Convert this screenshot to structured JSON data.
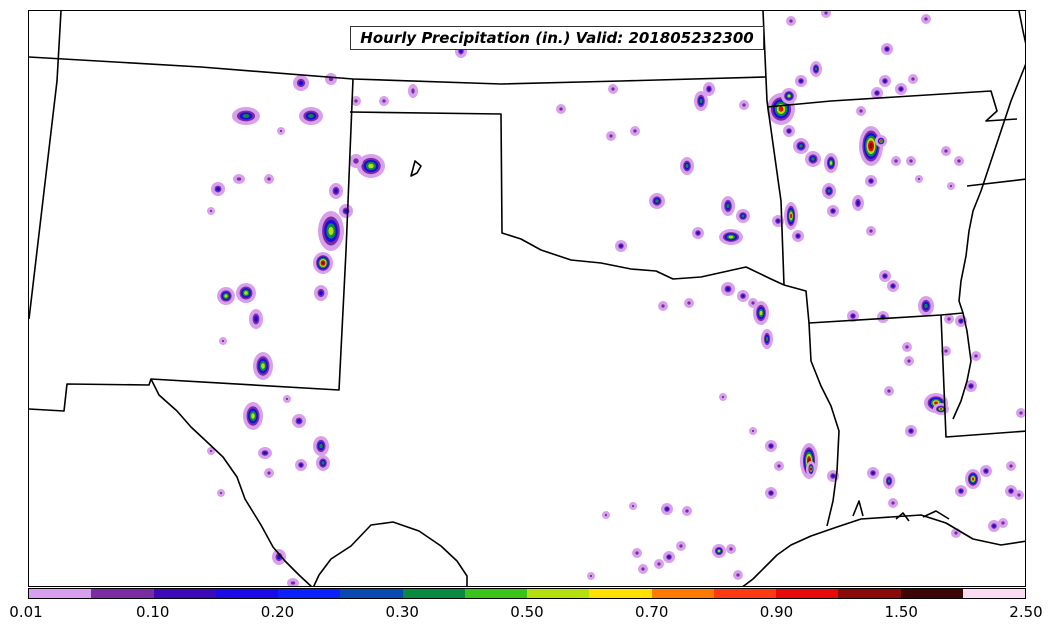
{
  "title": "Hourly Precipitation (in.) Valid: 201805232300",
  "colorbar": {
    "colors": [
      "#d8a0ec",
      "#7a2ca0",
      "#3c0ab8",
      "#1a0ae6",
      "#0a20ff",
      "#0a4ab0",
      "#0a8a40",
      "#3ac41a",
      "#b4e010",
      "#ffe000",
      "#ff7a00",
      "#ff3a10",
      "#e80a0a",
      "#8a0a0a",
      "#3c0606",
      "#fcdcf4"
    ],
    "tick_labels": [
      "0.01",
      "0.10",
      "0.20",
      "0.30",
      "0.50",
      "0.70",
      "0.90",
      "1.50",
      "2.50"
    ]
  }
}
